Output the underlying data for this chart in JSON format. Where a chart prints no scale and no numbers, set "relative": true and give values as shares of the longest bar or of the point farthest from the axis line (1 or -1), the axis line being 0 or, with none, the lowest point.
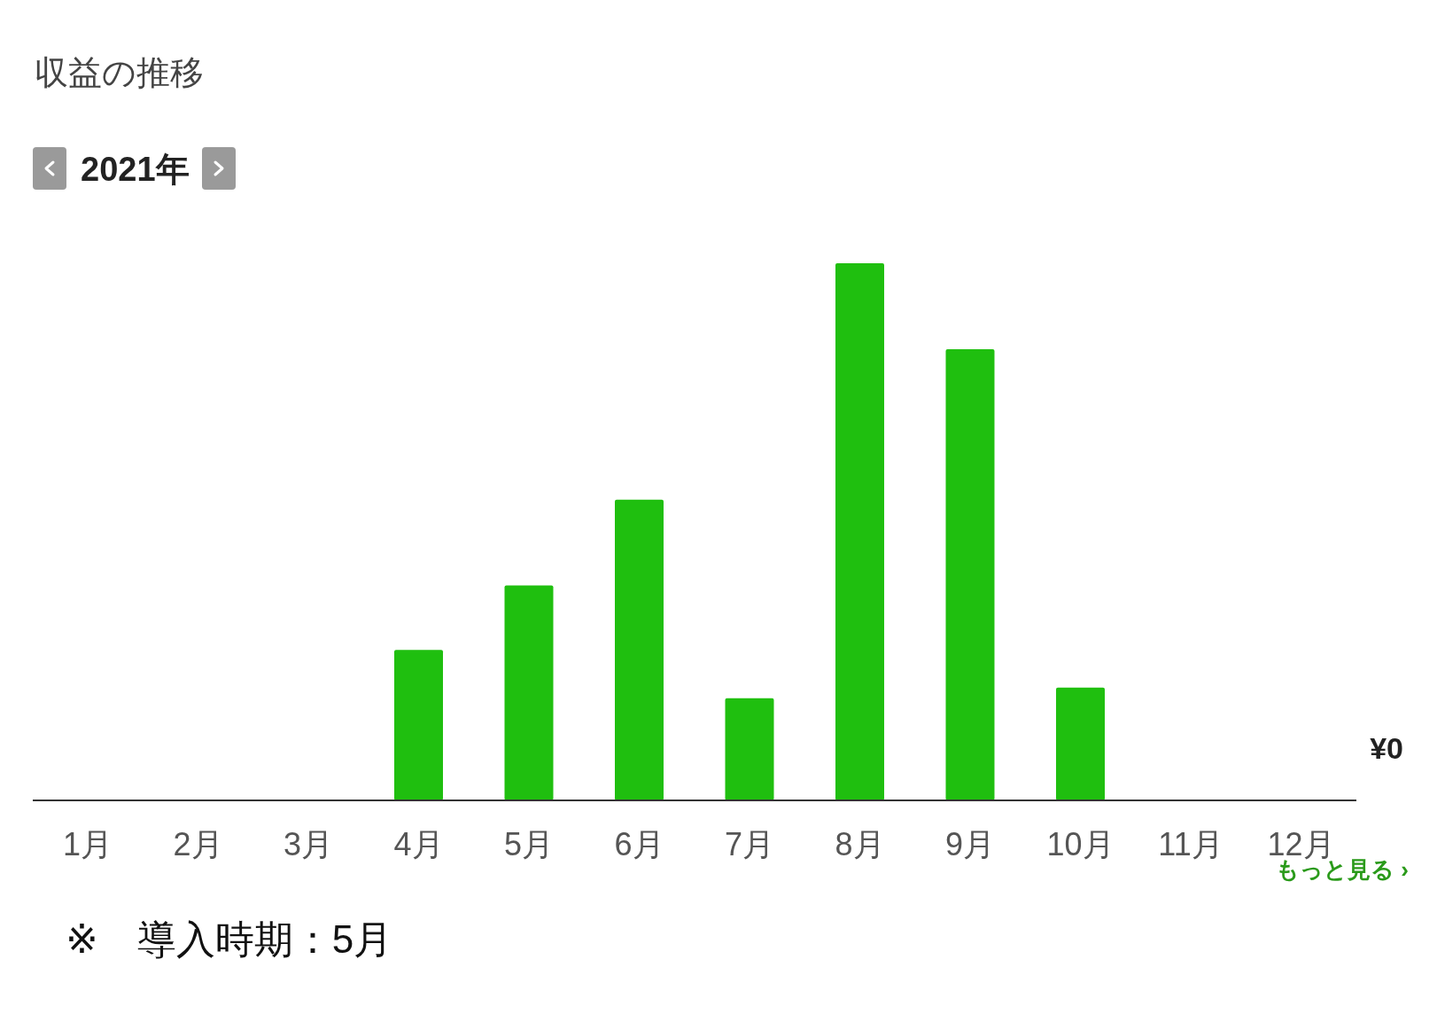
{
  "chart_data": {
    "type": "bar",
    "title": "収益の推移",
    "subtitle": "2021年",
    "relative": true,
    "categories": [
      "1月",
      "2月",
      "3月",
      "4月",
      "5月",
      "6月",
      "7月",
      "8月",
      "9月",
      "10月",
      "11月",
      "12月"
    ],
    "values": [
      0,
      0,
      0,
      0.28,
      0.4,
      0.56,
      0.19,
      1,
      0.84,
      0.21,
      0,
      0
    ],
    "color": "#1fbf0f",
    "grid": false,
    "annotations": [
      "¥0",
      "もっと見る ›",
      "※　導入時期：5月"
    ]
  }
}
